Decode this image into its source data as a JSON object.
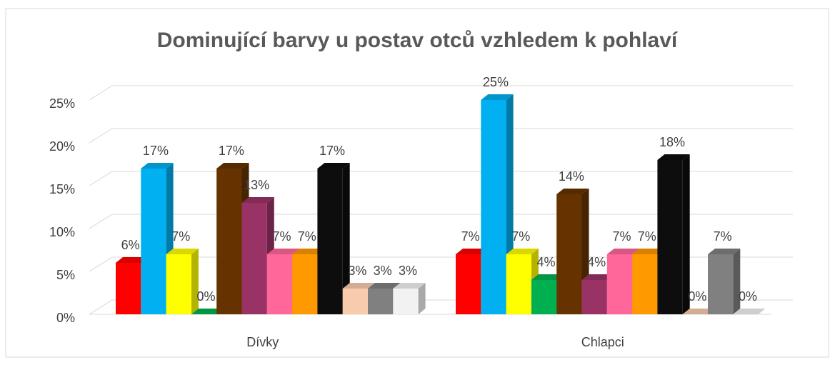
{
  "chart_data": {
    "type": "bar3d",
    "title": "Dominující barvy u postav otců vzhledem k pohlaví",
    "categories": [
      "Dívky",
      "Chlapci"
    ],
    "series": [
      {
        "color": "#ff0000",
        "values": [
          6,
          7
        ],
        "value_labels": [
          "6%",
          "7%"
        ]
      },
      {
        "color": "#00b0f0",
        "values": [
          17,
          25
        ],
        "value_labels": [
          "17%",
          "25%"
        ]
      },
      {
        "color": "#ffff00",
        "values": [
          7,
          7
        ],
        "value_labels": [
          "7%",
          "7%"
        ]
      },
      {
        "color": "#00b050",
        "values": [
          0,
          4
        ],
        "value_labels": [
          "0%",
          "4%"
        ]
      },
      {
        "color": "#663300",
        "values": [
          17,
          14
        ],
        "value_labels": [
          "17%",
          "14%"
        ]
      },
      {
        "color": "#993366",
        "values": [
          13,
          4
        ],
        "value_labels": [
          "13%",
          "4%"
        ]
      },
      {
        "color": "#ff6699",
        "values": [
          7,
          7
        ],
        "value_labels": [
          "7%",
          "7%"
        ]
      },
      {
        "color": "#ff9900",
        "values": [
          7,
          7
        ],
        "value_labels": [
          "7%",
          "7%"
        ]
      },
      {
        "color": "#0d0d0d",
        "values": [
          17,
          18
        ],
        "value_labels": [
          "17%",
          "18%"
        ]
      },
      {
        "color": "#f8cbad",
        "values": [
          3,
          0
        ],
        "value_labels": [
          "3%",
          "0%"
        ]
      },
      {
        "color": "#808080",
        "values": [
          3,
          7
        ],
        "value_labels": [
          "3%",
          "7%"
        ]
      },
      {
        "color": "#f2f2f2",
        "values": [
          3,
          0
        ],
        "value_labels": [
          "3%",
          "0%"
        ]
      }
    ],
    "ylim": [
      0,
      25
    ],
    "yticks": [
      {
        "value": 0,
        "label": "0%"
      },
      {
        "value": 5,
        "label": "5%"
      },
      {
        "value": 10,
        "label": "10%"
      },
      {
        "value": 15,
        "label": "15%"
      },
      {
        "value": 20,
        "label": "20%"
      },
      {
        "value": 25,
        "label": "25%"
      }
    ],
    "grid": true
  }
}
